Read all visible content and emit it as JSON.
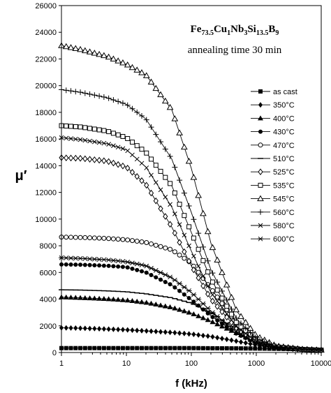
{
  "chart_data": {
    "type": "line",
    "title": "",
    "xlabel": "f (kHz)",
    "ylabel": "μ′",
    "x_scale": "log",
    "xlim": [
      1,
      10000
    ],
    "ylim": [
      0,
      26000
    ],
    "x_ticks": [
      "1",
      "10",
      "100",
      "1000",
      "10000"
    ],
    "y_ticks": [
      "0",
      "2000",
      "4000",
      "6000",
      "8000",
      "10000",
      "12000",
      "14000",
      "16000",
      "18000",
      "20000",
      "22000",
      "24000",
      "26000"
    ],
    "grid": false,
    "legend_position": "right",
    "annotations": {
      "formula": [
        {
          "text": "Fe",
          "sub": false
        },
        {
          "text": "73.5",
          "sub": true
        },
        {
          "text": "Cu",
          "sub": false
        },
        {
          "text": "1",
          "sub": true
        },
        {
          "text": "Nb",
          "sub": false
        },
        {
          "text": "3",
          "sub": true
        },
        {
          "text": "Si",
          "sub": false
        },
        {
          "text": "13.5",
          "sub": true
        },
        {
          "text": "B",
          "sub": false
        },
        {
          "text": "9",
          "sub": true
        }
      ],
      "condition": "annealing time 30 min"
    },
    "series": [
      {
        "name": "as cast",
        "marker": "square",
        "points": [
          [
            1,
            330
          ],
          [
            2,
            330
          ],
          [
            5,
            330
          ],
          [
            10,
            330
          ],
          [
            20,
            330
          ],
          [
            50,
            330
          ],
          [
            100,
            330
          ],
          [
            200,
            320
          ],
          [
            500,
            310
          ],
          [
            1000,
            300
          ],
          [
            2000,
            280
          ],
          [
            5000,
            250
          ],
          [
            10000,
            200
          ]
        ]
      },
      {
        "name": "350°C",
        "marker": "diamond",
        "points": [
          [
            1,
            1850
          ],
          [
            2,
            1820
          ],
          [
            5,
            1760
          ],
          [
            10,
            1700
          ],
          [
            20,
            1620
          ],
          [
            50,
            1500
          ],
          [
            100,
            1380
          ],
          [
            200,
            1200
          ],
          [
            500,
            850
          ],
          [
            1000,
            560
          ],
          [
            2000,
            340
          ],
          [
            5000,
            230
          ],
          [
            10000,
            180
          ]
        ]
      },
      {
        "name": "400°C",
        "marker": "triangle",
        "points": [
          [
            1,
            4150
          ],
          [
            2,
            4100
          ],
          [
            5,
            4020
          ],
          [
            10,
            3920
          ],
          [
            20,
            3750
          ],
          [
            50,
            3380
          ],
          [
            100,
            2950
          ],
          [
            200,
            2350
          ],
          [
            500,
            1450
          ],
          [
            1000,
            820
          ],
          [
            2000,
            430
          ],
          [
            5000,
            250
          ],
          [
            10000,
            190
          ]
        ]
      },
      {
        "name": "430°C",
        "marker": "circle",
        "points": [
          [
            1,
            6600
          ],
          [
            2,
            6580
          ],
          [
            5,
            6500
          ],
          [
            10,
            6400
          ],
          [
            20,
            6000
          ],
          [
            50,
            5050
          ],
          [
            100,
            3950
          ],
          [
            200,
            2750
          ],
          [
            500,
            1400
          ],
          [
            1000,
            720
          ],
          [
            2000,
            380
          ],
          [
            5000,
            240
          ],
          [
            10000,
            180
          ]
        ]
      },
      {
        "name": "470°C",
        "marker": "circle-open",
        "points": [
          [
            1,
            8650
          ],
          [
            2,
            8620
          ],
          [
            5,
            8550
          ],
          [
            10,
            8450
          ],
          [
            20,
            8250
          ],
          [
            50,
            7700
          ],
          [
            100,
            6700
          ],
          [
            200,
            4800
          ],
          [
            500,
            2200
          ],
          [
            1000,
            1000
          ],
          [
            2000,
            450
          ],
          [
            5000,
            250
          ],
          [
            10000,
            180
          ]
        ]
      },
      {
        "name": "510°C",
        "marker": "dash",
        "points": [
          [
            1,
            4700
          ],
          [
            2,
            4680
          ],
          [
            5,
            4620
          ],
          [
            10,
            4550
          ],
          [
            20,
            4400
          ],
          [
            50,
            4100
          ],
          [
            100,
            3700
          ],
          [
            200,
            3000
          ],
          [
            500,
            1700
          ],
          [
            1000,
            850
          ],
          [
            2000,
            420
          ],
          [
            5000,
            240
          ],
          [
            10000,
            180
          ]
        ]
      },
      {
        "name": "525°C",
        "marker": "diamond-open",
        "points": [
          [
            1,
            14600
          ],
          [
            2,
            14550
          ],
          [
            5,
            14350
          ],
          [
            10,
            13900
          ],
          [
            20,
            12600
          ],
          [
            50,
            9400
          ],
          [
            100,
            6500
          ],
          [
            200,
            4000
          ],
          [
            500,
            1800
          ],
          [
            1000,
            850
          ],
          [
            2000,
            400
          ],
          [
            5000,
            240
          ],
          [
            10000,
            180
          ]
        ]
      },
      {
        "name": "535°C",
        "marker": "square-open",
        "points": [
          [
            1,
            17000
          ],
          [
            2,
            16900
          ],
          [
            5,
            16600
          ],
          [
            10,
            16100
          ],
          [
            20,
            15000
          ],
          [
            50,
            12500
          ],
          [
            100,
            9000
          ],
          [
            200,
            5500
          ],
          [
            500,
            2200
          ],
          [
            1000,
            950
          ],
          [
            2000,
            430
          ],
          [
            5000,
            240
          ],
          [
            10000,
            180
          ]
        ]
      },
      {
        "name": "545°C",
        "marker": "triangle-open",
        "points": [
          [
            1,
            23000
          ],
          [
            2,
            22700
          ],
          [
            5,
            22200
          ],
          [
            10,
            21600
          ],
          [
            20,
            20800
          ],
          [
            50,
            18200
          ],
          [
            100,
            13800
          ],
          [
            200,
            8200
          ],
          [
            500,
            3100
          ],
          [
            1000,
            1250
          ],
          [
            2000,
            500
          ],
          [
            5000,
            250
          ],
          [
            10000,
            180
          ]
        ]
      },
      {
        "name": "560°C",
        "marker": "plus",
        "points": [
          [
            1,
            19700
          ],
          [
            2,
            19500
          ],
          [
            5,
            19100
          ],
          [
            10,
            18600
          ],
          [
            20,
            17500
          ],
          [
            50,
            14500
          ],
          [
            100,
            10500
          ],
          [
            200,
            6200
          ],
          [
            500,
            2500
          ],
          [
            1000,
            1050
          ],
          [
            2000,
            450
          ],
          [
            5000,
            240
          ],
          [
            10000,
            180
          ]
        ]
      },
      {
        "name": "580°C",
        "marker": "cross",
        "points": [
          [
            1,
            16100
          ],
          [
            2,
            15950
          ],
          [
            5,
            15650
          ],
          [
            10,
            15200
          ],
          [
            20,
            13900
          ],
          [
            50,
            10900
          ],
          [
            100,
            7600
          ],
          [
            200,
            4500
          ],
          [
            500,
            1900
          ],
          [
            1000,
            850
          ],
          [
            2000,
            400
          ],
          [
            5000,
            230
          ],
          [
            10000,
            180
          ]
        ]
      },
      {
        "name": "600°C",
        "marker": "asterisk",
        "points": [
          [
            1,
            7100
          ],
          [
            2,
            7050
          ],
          [
            5,
            6950
          ],
          [
            10,
            6800
          ],
          [
            20,
            6500
          ],
          [
            50,
            5600
          ],
          [
            100,
            4500
          ],
          [
            200,
            3100
          ],
          [
            500,
            1500
          ],
          [
            1000,
            720
          ],
          [
            2000,
            360
          ],
          [
            5000,
            220
          ],
          [
            10000,
            170
          ]
        ]
      }
    ]
  }
}
